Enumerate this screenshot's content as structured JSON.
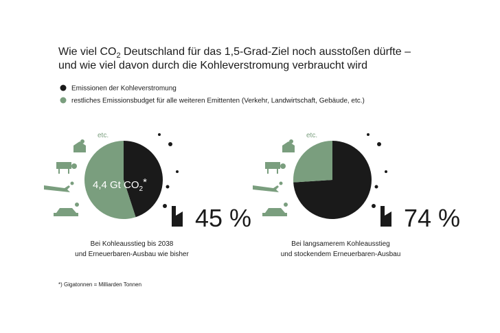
{
  "header": {
    "title_line1": {
      "before": "Wie viel CO",
      "sub": "2",
      "after": " Deutschland für das 1,5-Grad-Ziel noch ausstoßen dürfte –"
    },
    "title_line2": "und wie viel davon durch die Kohleverstromung verbraucht wird"
  },
  "legend": {
    "items": [
      {
        "label": "Emissionen der Kohleverstromung",
        "color": "#1a1a1a"
      },
      {
        "label": "restliches Emissionsbudget für alle weiteren Emittenten (Verkehr, Landwirtschaft, Gebäude, etc.)",
        "color": "#7a9e7e"
      }
    ]
  },
  "chart_data": [
    {
      "type": "pie",
      "values": [
        45,
        55
      ],
      "value_labels": [
        "45 %",
        null
      ],
      "colors": [
        "#1a1a1a",
        "#7a9e7e"
      ],
      "center_label": {
        "before": "4,4 Gt CO",
        "sub": "2",
        "after": "*"
      },
      "icon_note": "etc.",
      "caption": [
        "Bei Kohleausstieg bis 2038",
        "und Erneuerbaren-Ausbau wie bisher"
      ]
    },
    {
      "type": "pie",
      "values": [
        74,
        26
      ],
      "value_labels": [
        "74 %",
        null
      ],
      "colors": [
        "#1a1a1a",
        "#7a9e7e"
      ],
      "icon_note": "etc.",
      "caption": [
        "Bei langsamerem Kohleausstieg",
        "und stockendem Erneuerbaren-Ausbau"
      ]
    }
  ],
  "footnote": "*) Gigatonnen = Milliarden Tonnen"
}
